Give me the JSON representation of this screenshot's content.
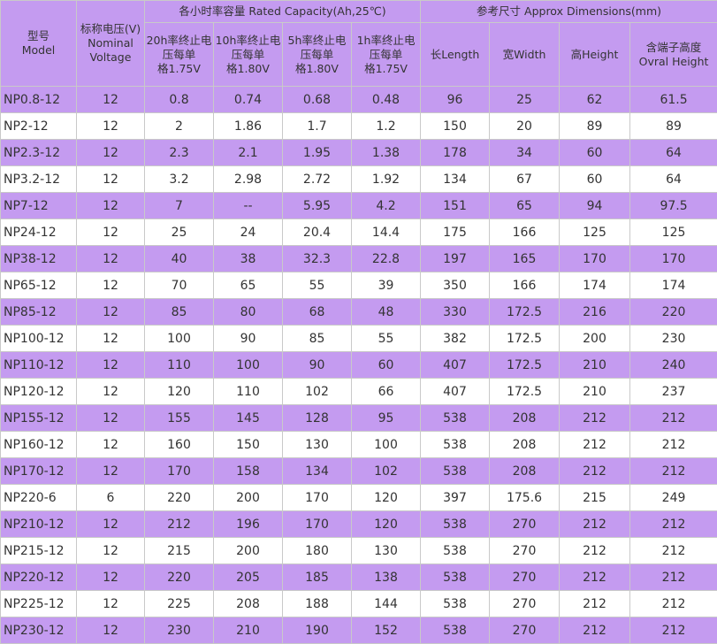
{
  "header": {
    "model": [
      "型号",
      "Model"
    ],
    "voltage": [
      "标称电压(V)",
      "Nominal",
      "Voltage"
    ],
    "capacity_group": "各小时率容量 Rated Capacity(Ah,25℃)",
    "dimensions_group": "参考尺寸 Approx Dimensions(mm)",
    "cap_cols": [
      [
        "20h率终止电",
        "压每单",
        "格1.75V"
      ],
      [
        "10h率终止电",
        "压每单",
        "格1.80V"
      ],
      [
        "5h率终止电",
        "压每单",
        "格1.80V"
      ],
      [
        "1h率终止电",
        "压每单",
        "格1.75V"
      ]
    ],
    "dim_cols": [
      [
        "长Length"
      ],
      [
        "宽Width"
      ],
      [
        "高Height"
      ],
      [
        "含端子高度",
        "Ovral Height"
      ]
    ]
  },
  "rows": [
    [
      "NP0.8-12",
      "12",
      "0.8",
      "0.74",
      "0.68",
      "0.48",
      "96",
      "25",
      "62",
      "61.5"
    ],
    [
      "NP2-12",
      "12",
      "2",
      "1.86",
      "1.7",
      "1.2",
      "150",
      "20",
      "89",
      "89"
    ],
    [
      "NP2.3-12",
      "12",
      "2.3",
      "2.1",
      "1.95",
      "1.38",
      "178",
      "34",
      "60",
      "64"
    ],
    [
      "NP3.2-12",
      "12",
      "3.2",
      "2.98",
      "2.72",
      "1.92",
      "134",
      "67",
      "60",
      "64"
    ],
    [
      "NP7-12",
      "12",
      "7",
      "--",
      "5.95",
      "4.2",
      "151",
      "65",
      "94",
      "97.5"
    ],
    [
      "NP24-12",
      "12",
      "25",
      "24",
      "20.4",
      "14.4",
      "175",
      "166",
      "125",
      "125"
    ],
    [
      "NP38-12",
      "12",
      "40",
      "38",
      "32.3",
      "22.8",
      "197",
      "165",
      "170",
      "170"
    ],
    [
      "NP65-12",
      "12",
      "70",
      "65",
      "55",
      "39",
      "350",
      "166",
      "174",
      "174"
    ],
    [
      "NP85-12",
      "12",
      "85",
      "80",
      "68",
      "48",
      "330",
      "172.5",
      "216",
      "220"
    ],
    [
      "NP100-12",
      "12",
      "100",
      "90",
      "85",
      "55",
      "382",
      "172.5",
      "200",
      "230"
    ],
    [
      "NP110-12",
      "12",
      "110",
      "100",
      "90",
      "60",
      "407",
      "172.5",
      "210",
      "240"
    ],
    [
      "NP120-12",
      "12",
      "120",
      "110",
      "102",
      "66",
      "407",
      "172.5",
      "210",
      "237"
    ],
    [
      "NP155-12",
      "12",
      "155",
      "145",
      "128",
      "95",
      "538",
      "208",
      "212",
      "212"
    ],
    [
      "NP160-12",
      "12",
      "160",
      "150",
      "130",
      "100",
      "538",
      "208",
      "212",
      "212"
    ],
    [
      "NP170-12",
      "12",
      "170",
      "158",
      "134",
      "102",
      "538",
      "208",
      "212",
      "212"
    ],
    [
      "NP220-6",
      "6",
      "220",
      "200",
      "170",
      "120",
      "397",
      "175.6",
      "215",
      "249"
    ],
    [
      "NP210-12",
      "12",
      "212",
      "196",
      "170",
      "120",
      "538",
      "270",
      "212",
      "212"
    ],
    [
      "NP215-12",
      "12",
      "215",
      "200",
      "180",
      "130",
      "538",
      "270",
      "212",
      "212"
    ],
    [
      "NP220-12",
      "12",
      "220",
      "205",
      "185",
      "138",
      "538",
      "270",
      "212",
      "212"
    ],
    [
      "NP225-12",
      "12",
      "225",
      "208",
      "188",
      "144",
      "538",
      "270",
      "212",
      "212"
    ],
    [
      "NP230-12",
      "12",
      "230",
      "210",
      "190",
      "152",
      "538",
      "270",
      "212",
      "212"
    ]
  ]
}
